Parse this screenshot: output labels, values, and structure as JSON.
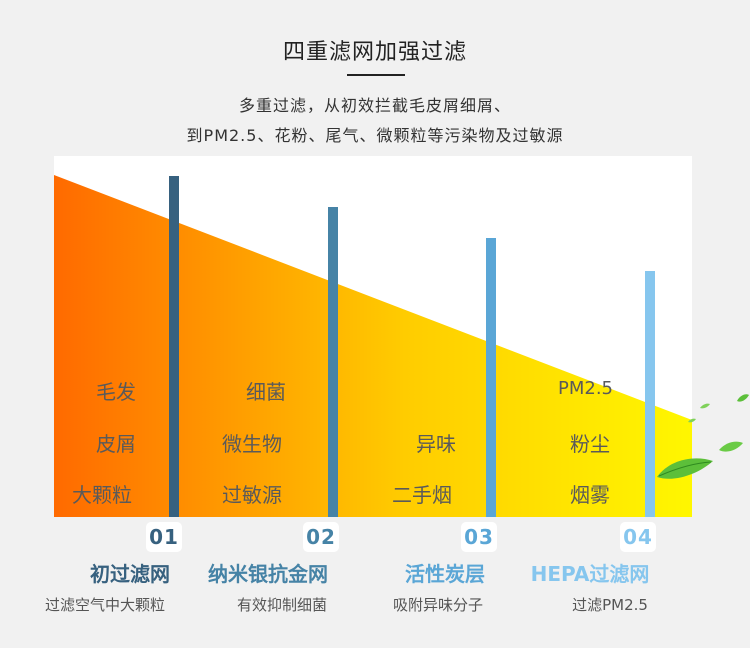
{
  "header": {
    "title": "四重滤网加强过滤",
    "subtitle_line1": "多重过滤，从初效拦截毛皮屑细屑、",
    "subtitle_line2": "到PM2.5、花粉、尾气、微颗粒等污染物及过敏源"
  },
  "stages": [
    {
      "number": "01",
      "name": "初过滤网",
      "desc": "过滤空气中大颗粒",
      "color": "#37617f",
      "labels": [
        "毛发",
        "皮屑",
        "大颗粒"
      ]
    },
    {
      "number": "02",
      "name": "纳米银抗金网",
      "desc": "有效抑制细菌",
      "color": "#4683a6",
      "labels": [
        "细菌",
        "微生物",
        "过敏源"
      ]
    },
    {
      "number": "03",
      "name": "活性炭层",
      "desc": "吸附异味分子",
      "color": "#5aa6d6",
      "labels": [
        "异味",
        "二手烟"
      ]
    },
    {
      "number": "04",
      "name": "HEPA过滤网",
      "desc": "过滤PM2.5",
      "color": "#86c6ee",
      "labels": [
        "PM2.5",
        "粉尘",
        "烟雾"
      ]
    }
  ],
  "colors": {
    "gradient_start": "#ff6a00",
    "gradient_mid": "#ffcc00",
    "gradient_end": "#fff700",
    "background": "#f1f1f1",
    "leaf": "#5cbf3a"
  }
}
